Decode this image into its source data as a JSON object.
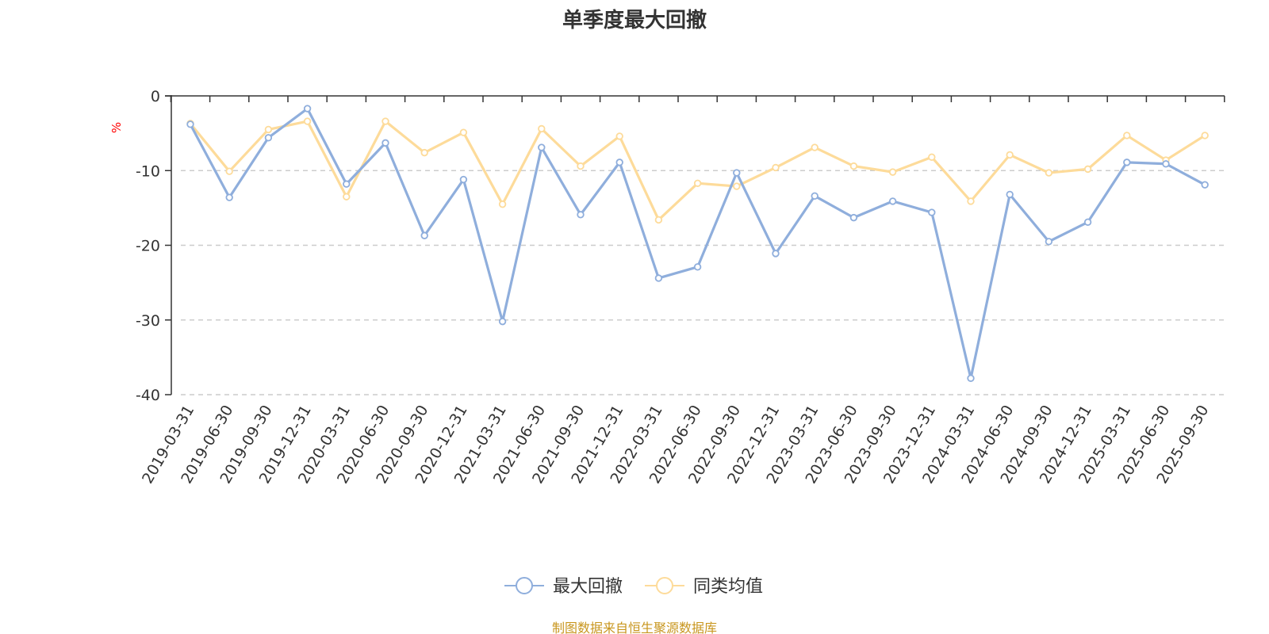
{
  "chart_data": {
    "type": "line",
    "title": "单季度最大回撤",
    "ylabel": "%",
    "ylim": [
      -40,
      0
    ],
    "yticks": [
      0,
      -10,
      -20,
      -30,
      -40
    ],
    "grid": true,
    "categories": [
      "2019-03-31",
      "2019-06-30",
      "2019-09-30",
      "2019-12-31",
      "2020-03-31",
      "2020-06-30",
      "2020-09-30",
      "2020-12-31",
      "2021-03-31",
      "2021-06-30",
      "2021-09-30",
      "2021-12-31",
      "2022-03-31",
      "2022-06-30",
      "2022-09-30",
      "2022-12-31",
      "2023-03-31",
      "2023-06-30",
      "2023-09-30",
      "2023-12-31",
      "2024-03-31",
      "2024-06-30",
      "2024-09-30",
      "2024-12-31",
      "2025-03-31",
      "2025-06-30",
      "2025-09-30"
    ],
    "series": [
      {
        "name": "最大回撤",
        "color": "#8faedc",
        "values": [
          -3.8,
          -13.6,
          -5.6,
          -1.7,
          -11.8,
          -6.3,
          -18.7,
          -11.2,
          -30.2,
          -6.9,
          -15.9,
          -8.9,
          -24.4,
          -22.9,
          -10.3,
          -21.1,
          -13.4,
          -16.3,
          -14.1,
          -15.6,
          -37.8,
          -13.2,
          -19.5,
          -16.9,
          -8.9,
          -9.1,
          -11.9
        ]
      },
      {
        "name": "同类均值",
        "color": "#fddb9a",
        "values": [
          -3.7,
          -10.1,
          -4.5,
          -3.4,
          -13.5,
          -3.4,
          -7.6,
          -4.9,
          -14.5,
          -4.4,
          -9.4,
          -5.4,
          -16.6,
          -11.7,
          -12.1,
          -9.6,
          -6.9,
          -9.4,
          -10.2,
          -8.2,
          -14.1,
          -7.9,
          -10.3,
          -9.8,
          -5.3,
          -8.6,
          -5.3
        ]
      }
    ],
    "legend_position": "bottom-center",
    "source": "制图数据来自恒生聚源数据库",
    "colors": {
      "title": "#333333",
      "axis": "#333333",
      "grid": "#cccccc",
      "unit": "#ff0000",
      "source": "#c8961e"
    }
  }
}
